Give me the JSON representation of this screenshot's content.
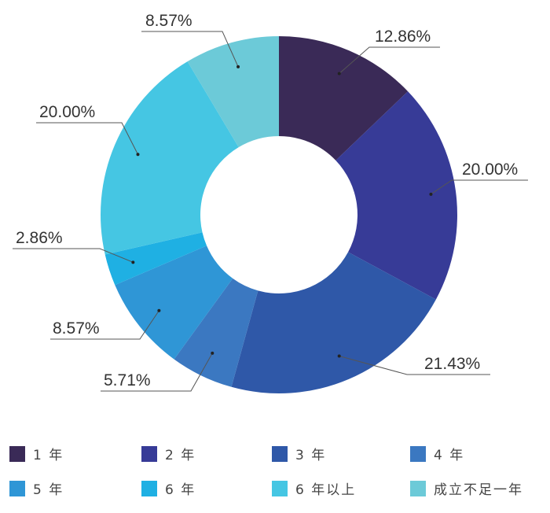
{
  "chart_data": {
    "type": "pie",
    "variant": "donut",
    "title": "",
    "slices": [
      {
        "label": "1 年",
        "value": 12.86,
        "value_label": "12.86%",
        "color": "#3a2a57"
      },
      {
        "label": "2 年",
        "value": 20.0,
        "value_label": "20.00%",
        "color": "#373b97"
      },
      {
        "label": "3 年",
        "value": 21.43,
        "value_label": "21.43%",
        "color": "#2f58a8"
      },
      {
        "label": "4 年",
        "value": 5.71,
        "value_label": "5.71%",
        "color": "#3b78c1"
      },
      {
        "label": "5 年",
        "value": 8.57,
        "value_label": "8.57%",
        "color": "#2f96d6"
      },
      {
        "label": "6 年",
        "value": 2.86,
        "value_label": "2.86%",
        "color": "#1fb0e3"
      },
      {
        "label": "6 年以上",
        "value": 20.0,
        "value_label": "20.00%",
        "color": "#45c6e3"
      },
      {
        "label": "成立不足一年",
        "value": 8.57,
        "value_label": "8.57%",
        "color": "#6ccad8"
      }
    ],
    "legend_position": "bottom",
    "start_angle": "top, clockwise"
  }
}
